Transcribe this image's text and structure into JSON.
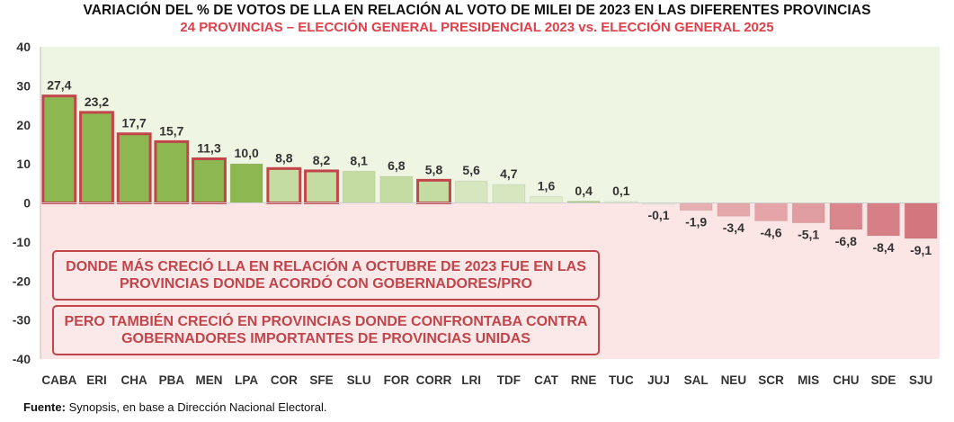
{
  "header": {
    "title": "VARIACIÓN DEL % DE VOTOS DE LLA EN RELACIÓN AL VOTO DE MILEI DE 2023 EN LAS DIFERENTES PROVINCIAS",
    "subtitle": "24 PROVINCIAS – ELECCIÓN GENERAL PRESIDENCIAL 2023 vs. ELECCIÓN GENERAL 2025"
  },
  "notes": [
    "DONDE MÁS CRECIÓ LLA EN RELACIÓN A OCTUBRE DE 2023 FUE EN LAS PROVINCIAS DONDE ACORDÓ CON GOBERNADORES/PRO",
    "PERO TAMBIÉN CRECIÓ EN PROVINCIAS DONDE CONFRONTABA CONTRA GOBERNADORES IMPORTANTES DE PROVINCIAS UNIDAS"
  ],
  "source": {
    "label": "Fuente:",
    "text": "Synopsis, en base a Dirección Nacional Electoral."
  },
  "colors": {
    "positive_background": "#eef5e2",
    "negative_background": "#fbe5e5",
    "outline_red": "#c1454b",
    "note_text": "#c1454b",
    "subtitle": "#e0404a"
  },
  "chart_data": {
    "type": "bar",
    "title": "VARIACIÓN DEL % DE VOTOS DE LLA EN RELACIÓN AL VOTO DE MILEI DE 2023 EN LAS DIFERENTES PROVINCIAS",
    "categories": [
      "CABA",
      "ERI",
      "CHA",
      "PBA",
      "MEN",
      "LPA",
      "COR",
      "SFE",
      "SLU",
      "FOR",
      "CORR",
      "LRI",
      "TDF",
      "CAT",
      "RNE",
      "TUC",
      "JUJ",
      "SAL",
      "NEU",
      "SCR",
      "MIS",
      "CHU",
      "SDE",
      "SJU"
    ],
    "values": [
      27.4,
      23.2,
      17.7,
      15.7,
      11.3,
      10.0,
      8.8,
      8.2,
      8.1,
      6.8,
      5.8,
      5.6,
      4.7,
      1.6,
      0.4,
      0.1,
      -0.1,
      -1.9,
      -3.4,
      -4.6,
      -5.1,
      -6.8,
      -8.4,
      -9.1
    ],
    "value_labels": [
      "27,4",
      "23,2",
      "17,7",
      "15,7",
      "11,3",
      "10,0",
      "8,8",
      "8,2",
      "8,1",
      "6,8",
      "5,8",
      "5,6",
      "4,7",
      "1,6",
      "0,4",
      "0,1",
      "-0,1",
      "-1,9",
      "-3,4",
      "-4,6",
      "-5,1",
      "-6,8",
      "-8,4",
      "-9,1"
    ],
    "bar_colors": [
      "#8db750",
      "#8db750",
      "#8db750",
      "#8db750",
      "#8db750",
      "#8db750",
      "#c4dca1",
      "#c4dca1",
      "#c4dca1",
      "#c4dca1",
      "#c4dca1",
      "#d6e7bf",
      "#d6e7bf",
      "#dfedcb",
      "#a9cb84",
      "#e4efd6",
      "#e8eee0",
      "#e6b0b2",
      "#e4a8ab",
      "#e5a5a8",
      "#e09da1",
      "#d9868c",
      "#d67f86",
      "#d4767d"
    ],
    "outlined_red": [
      "CABA",
      "ERI",
      "CHA",
      "PBA",
      "MEN",
      "COR",
      "SFE",
      "CORR"
    ],
    "y_ticks": [
      40,
      30,
      20,
      10,
      0,
      -10,
      -20,
      -30,
      -40
    ],
    "ylim": [
      -40,
      40
    ],
    "grid": false,
    "legend": "none"
  }
}
